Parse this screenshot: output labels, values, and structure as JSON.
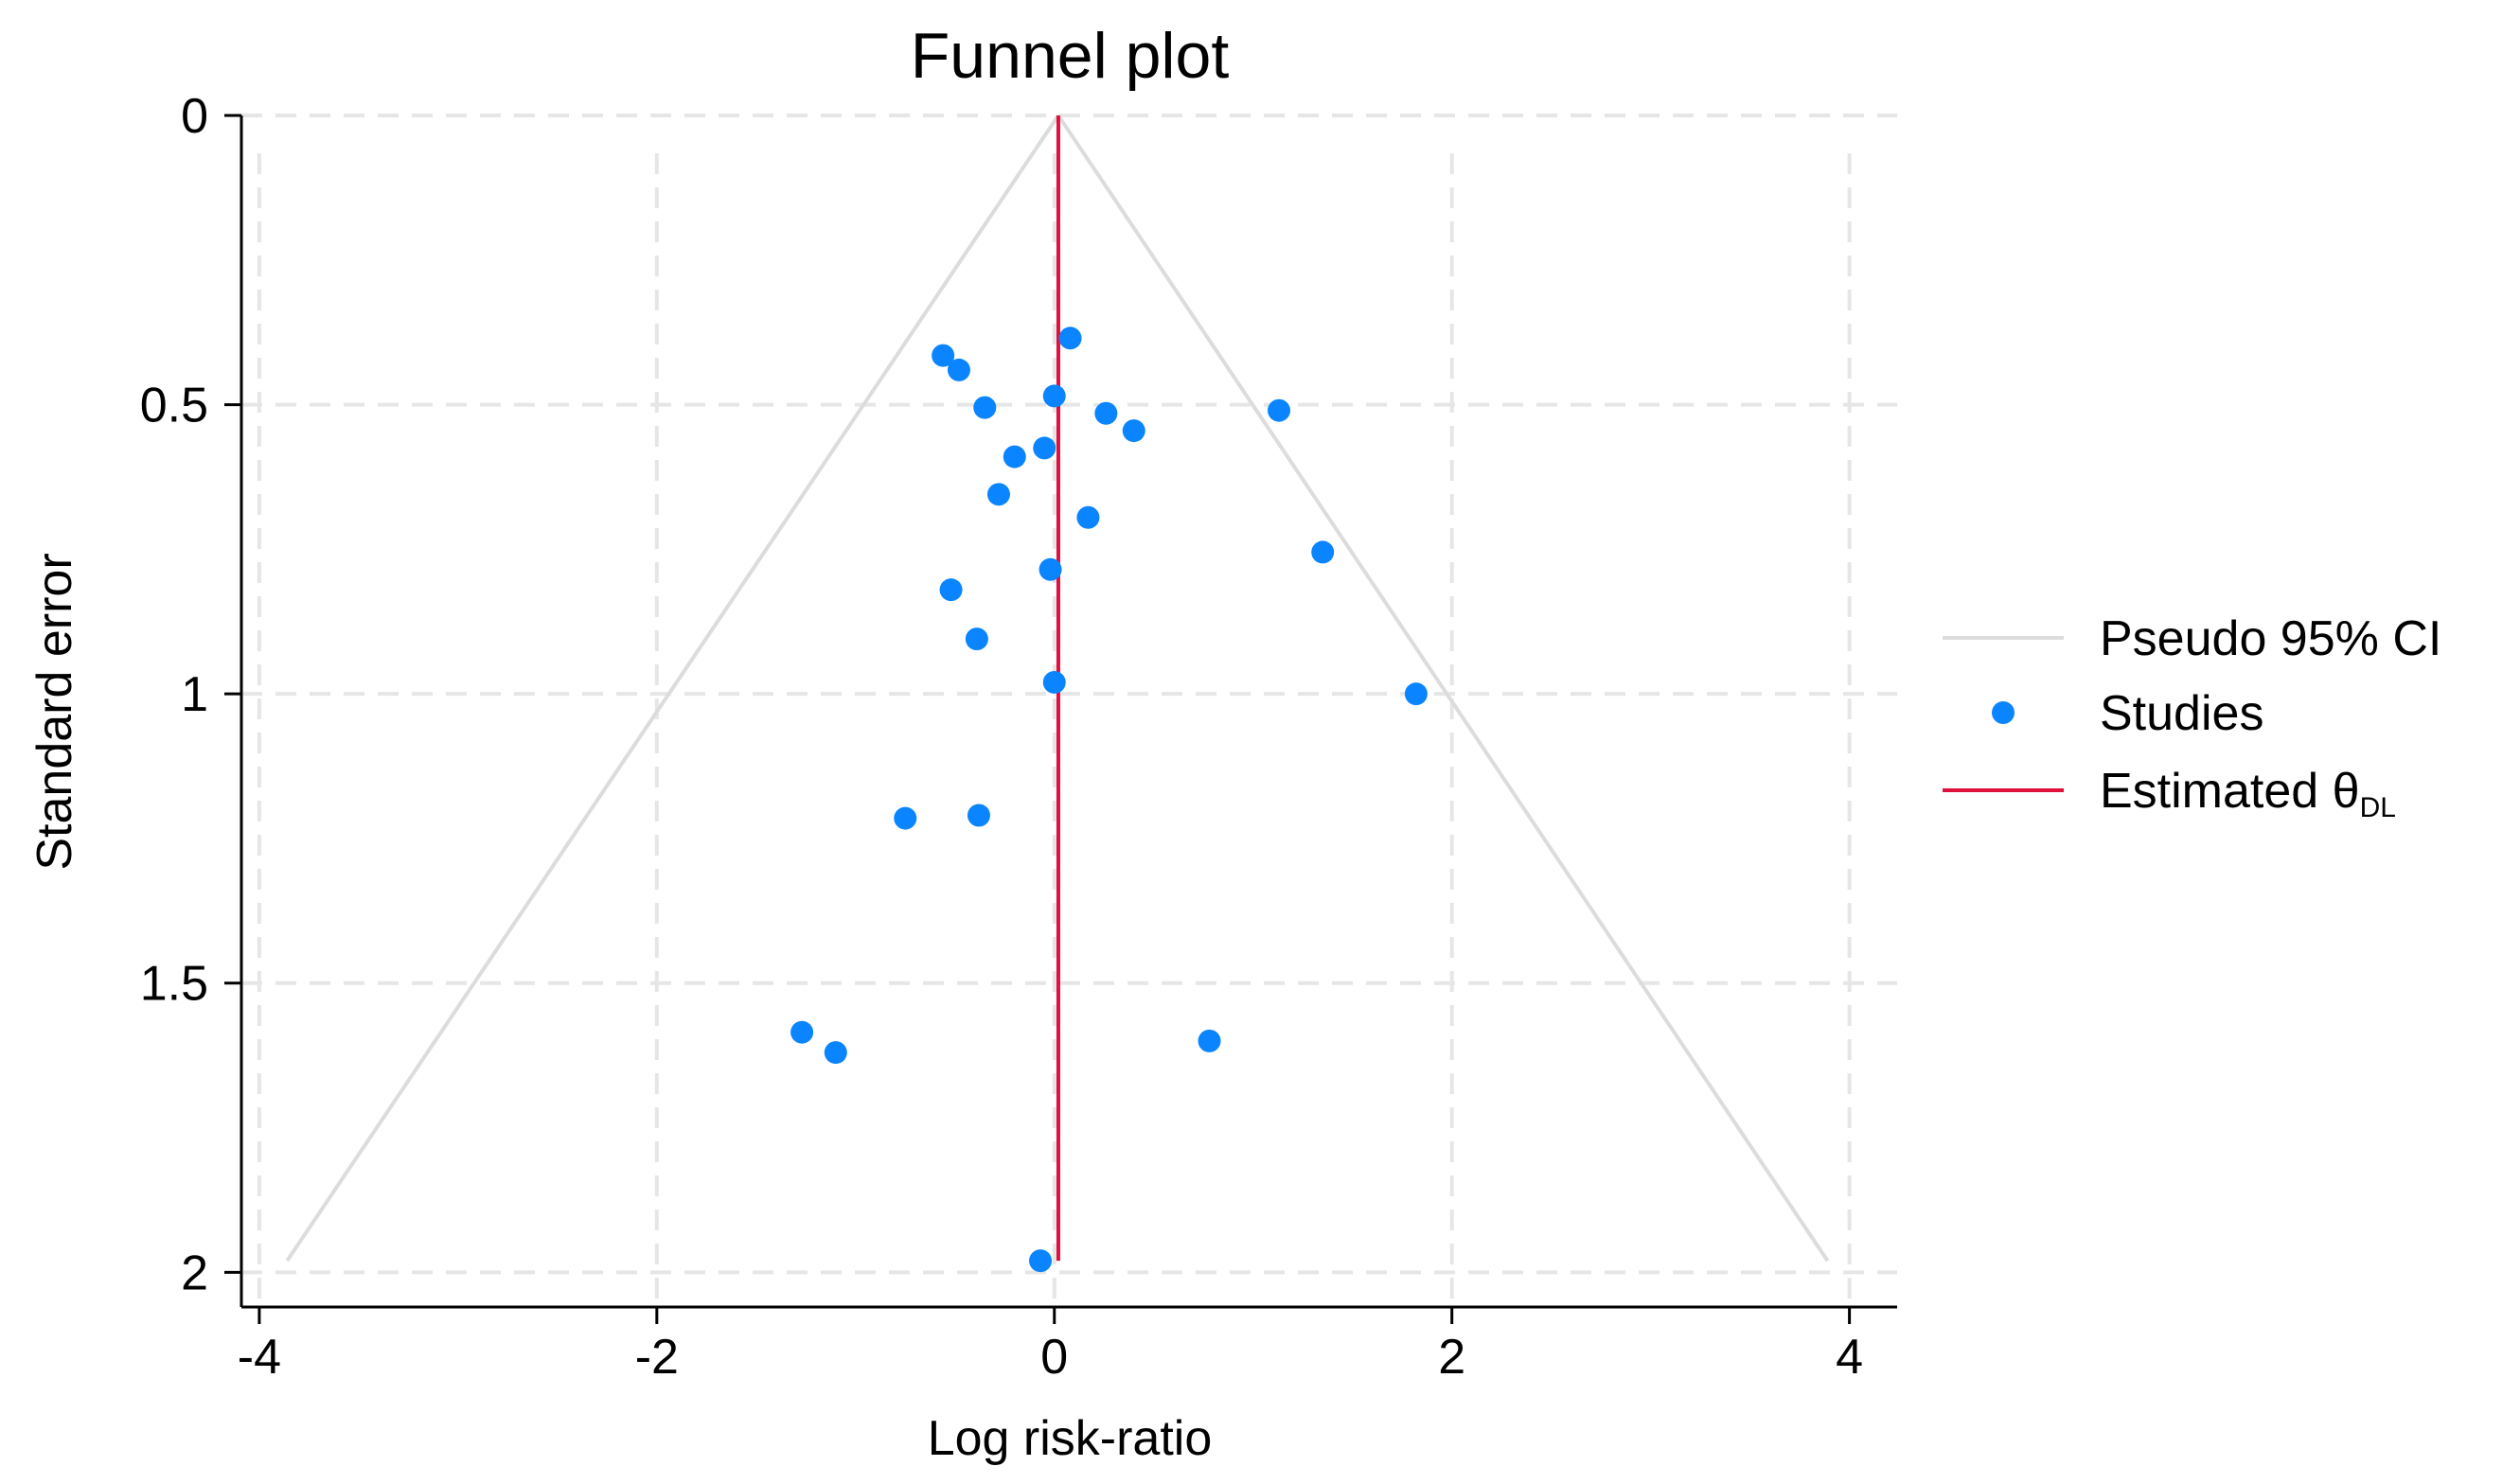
{
  "chart_data": {
    "type": "scatter",
    "title": "Funnel plot",
    "xlabel": "Log risk-ratio",
    "ylabel": "Standard error",
    "xlim": [
      -4.09,
      4.24
    ],
    "ylim": [
      0,
      2.06
    ],
    "y_reversed": true,
    "grid": true,
    "x_ticks": [
      -4,
      -2,
      0,
      2,
      4
    ],
    "x_tick_labels": [
      "-4",
      "-2",
      "0",
      "2",
      "4"
    ],
    "y_ticks": [
      0,
      0.5,
      1,
      1.5,
      2
    ],
    "y_tick_labels": [
      "0",
      "0.5",
      "1",
      "1.5",
      "2"
    ],
    "legend_position": "right",
    "legend": {
      "ci": "Pseudo 95% CI",
      "studies": "Studies",
      "estimate_main": "Estimated θ",
      "estimate_sub": "DL"
    },
    "estimated_theta": 0.02,
    "funnel": {
      "apex": [
        0.02,
        0
      ],
      "max_se": 1.98,
      "left_x": -3.86,
      "right_x": 3.89
    },
    "series": [
      {
        "x": [
          0.08,
          -0.56,
          -0.48,
          -0.35,
          0.0,
          0.26,
          0.4,
          1.13,
          -0.05,
          -0.2,
          -0.28,
          0.17,
          1.35,
          -0.02,
          -0.52,
          -0.39,
          0.0,
          1.82,
          -0.75,
          -0.38,
          -1.27,
          -1.1,
          0.78,
          -0.07
        ],
        "y": [
          0.385,
          0.415,
          0.44,
          0.505,
          0.485,
          0.515,
          0.545,
          0.51,
          0.575,
          0.59,
          0.655,
          0.695,
          0.755,
          0.785,
          0.82,
          0.905,
          0.98,
          1.0,
          1.215,
          1.21,
          1.585,
          1.62,
          1.6,
          1.98
        ]
      }
    ],
    "colors": {
      "points": "#0a84ff",
      "estimate_line": "#e0103c",
      "funnel": "#dcdcdc",
      "grid": "#e6e6e6",
      "axis": "#000000"
    }
  }
}
